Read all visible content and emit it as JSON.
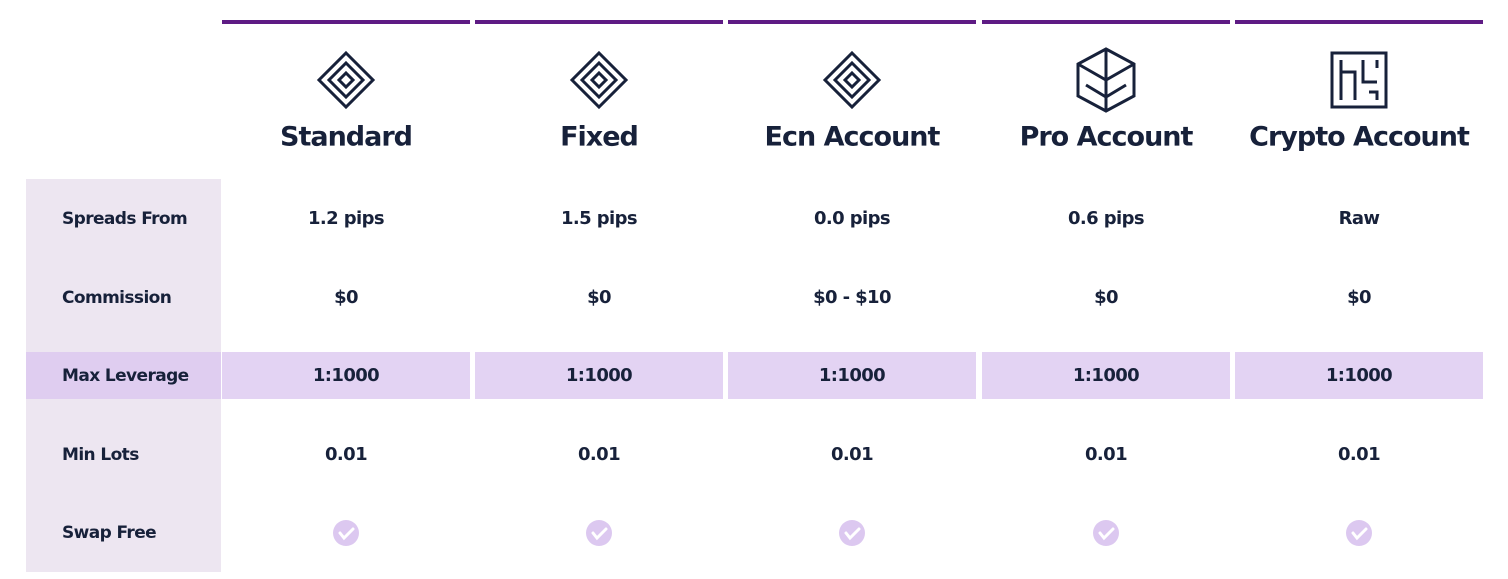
{
  "plans": [
    "Standard",
    "Fixed",
    "Ecn Account",
    "Pro Account",
    "Crypto Account"
  ],
  "rows": [
    {
      "label": "Spreads From",
      "values": [
        "1.2 pips",
        "1.5 pips",
        "0.0 pips",
        "0.6 pips",
        "Raw"
      ]
    },
    {
      "label": "Commission",
      "values": [
        "$0",
        "$0",
        "$0 - $10",
        "$0",
        "$0"
      ]
    },
    {
      "label": "Max Leverage",
      "values": [
        "1:1000",
        "1:1000",
        "1:1000",
        "1:1000",
        "1:1000"
      ]
    },
    {
      "label": "Min Lots",
      "values": [
        "0.01",
        "0.01",
        "0.01",
        "0.01",
        "0.01"
      ]
    },
    {
      "label": "Swap Free"
    }
  ]
}
